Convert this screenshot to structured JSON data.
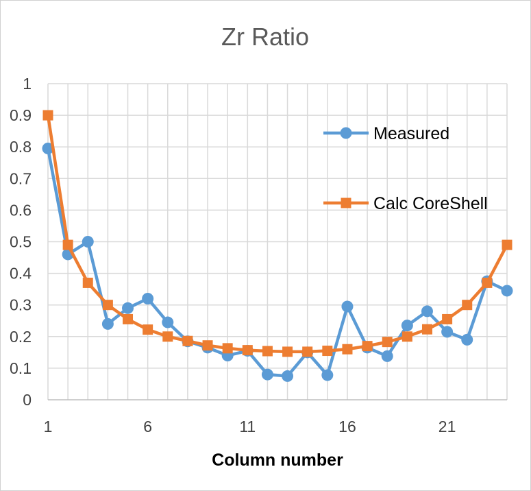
{
  "chart_data": {
    "type": "line",
    "title": "Zr Ratio",
    "xlabel": "Column number",
    "ylabel": "",
    "x": [
      1,
      2,
      3,
      4,
      5,
      6,
      7,
      8,
      9,
      10,
      11,
      12,
      13,
      14,
      15,
      16,
      17,
      18,
      19,
      20,
      21,
      22,
      23,
      24
    ],
    "xlim": [
      1,
      24
    ],
    "ylim": [
      0,
      1
    ],
    "x_ticks": [
      "1",
      "6",
      "11",
      "16",
      "21"
    ],
    "y_ticks": [
      "0",
      "0.1",
      "0.2",
      "0.3",
      "0.4",
      "0.5",
      "0.6",
      "0.7",
      "0.8",
      "0.9",
      "1"
    ],
    "grid": true,
    "legend_position": "right",
    "series": [
      {
        "name": "Measured",
        "color": "#5b9bd5",
        "marker": "circle",
        "values": [
          0.795,
          0.46,
          0.5,
          0.24,
          0.29,
          0.32,
          0.245,
          0.185,
          0.165,
          0.14,
          0.155,
          0.08,
          0.075,
          0.15,
          0.078,
          0.295,
          0.165,
          0.138,
          0.235,
          0.28,
          0.215,
          0.19,
          0.375,
          0.345
        ]
      },
      {
        "name": "Calc CoreShell",
        "color": "#ed7d31",
        "marker": "square",
        "values": [
          0.9,
          0.49,
          0.37,
          0.3,
          0.255,
          0.222,
          0.2,
          0.186,
          0.172,
          0.163,
          0.157,
          0.154,
          0.152,
          0.152,
          0.155,
          0.16,
          0.17,
          0.183,
          0.2,
          0.223,
          0.255,
          0.3,
          0.37,
          0.49
        ]
      }
    ]
  }
}
